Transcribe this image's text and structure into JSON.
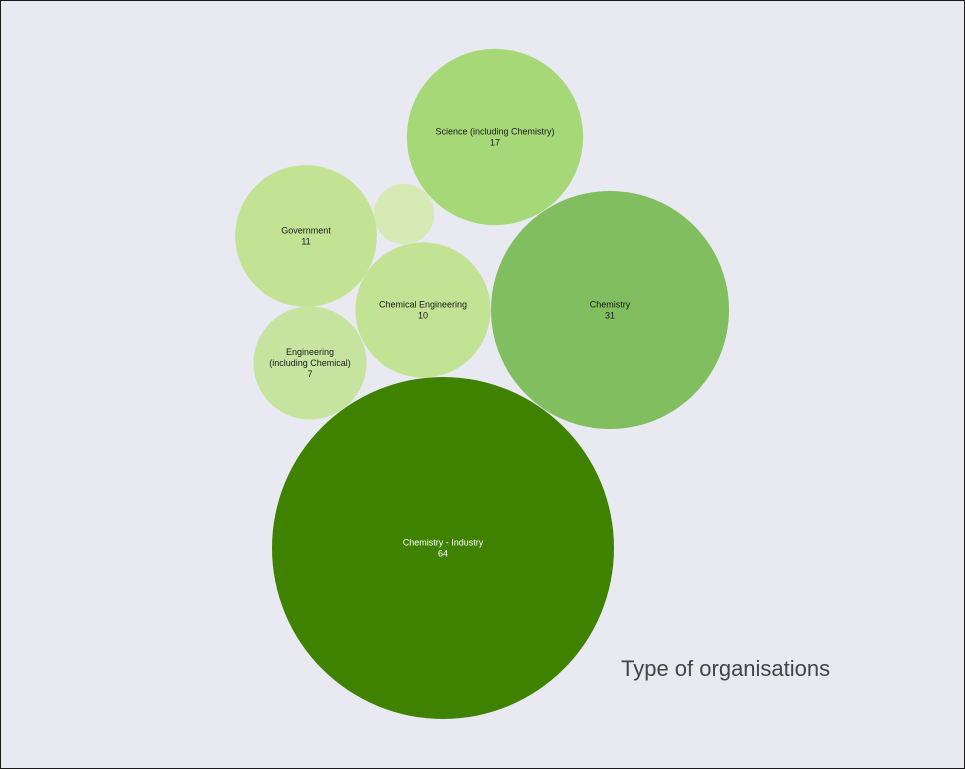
{
  "chart_data": {
    "type": "bubble",
    "title": "Type of organisations",
    "bubbles": [
      {
        "name": "Chemistry - Industry",
        "value": 64,
        "color": "#3e8200",
        "label_color": "#ffffff"
      },
      {
        "name": "Chemistry",
        "value": 31,
        "color": "#80be5f",
        "label_color": "#1a1a1a"
      },
      {
        "name": "Science (including Chemistry)",
        "value": 17,
        "color": "#a6d877",
        "label_color": "#1a1a1a"
      },
      {
        "name": "Government",
        "value": 11,
        "color": "#c2e294",
        "label_color": "#1a1a1a"
      },
      {
        "name": "Chemical Engineering",
        "value": 10,
        "color": "#c2e294",
        "label_color": "#1a1a1a"
      },
      {
        "name": "Engineering (including Chemical)",
        "value": 7,
        "color": "#c6e4a0",
        "label_color": "#1a1a1a"
      },
      {
        "name": "",
        "value": 2,
        "color": "#d5eab4",
        "label_color": "#1a1a1a"
      }
    ]
  }
}
